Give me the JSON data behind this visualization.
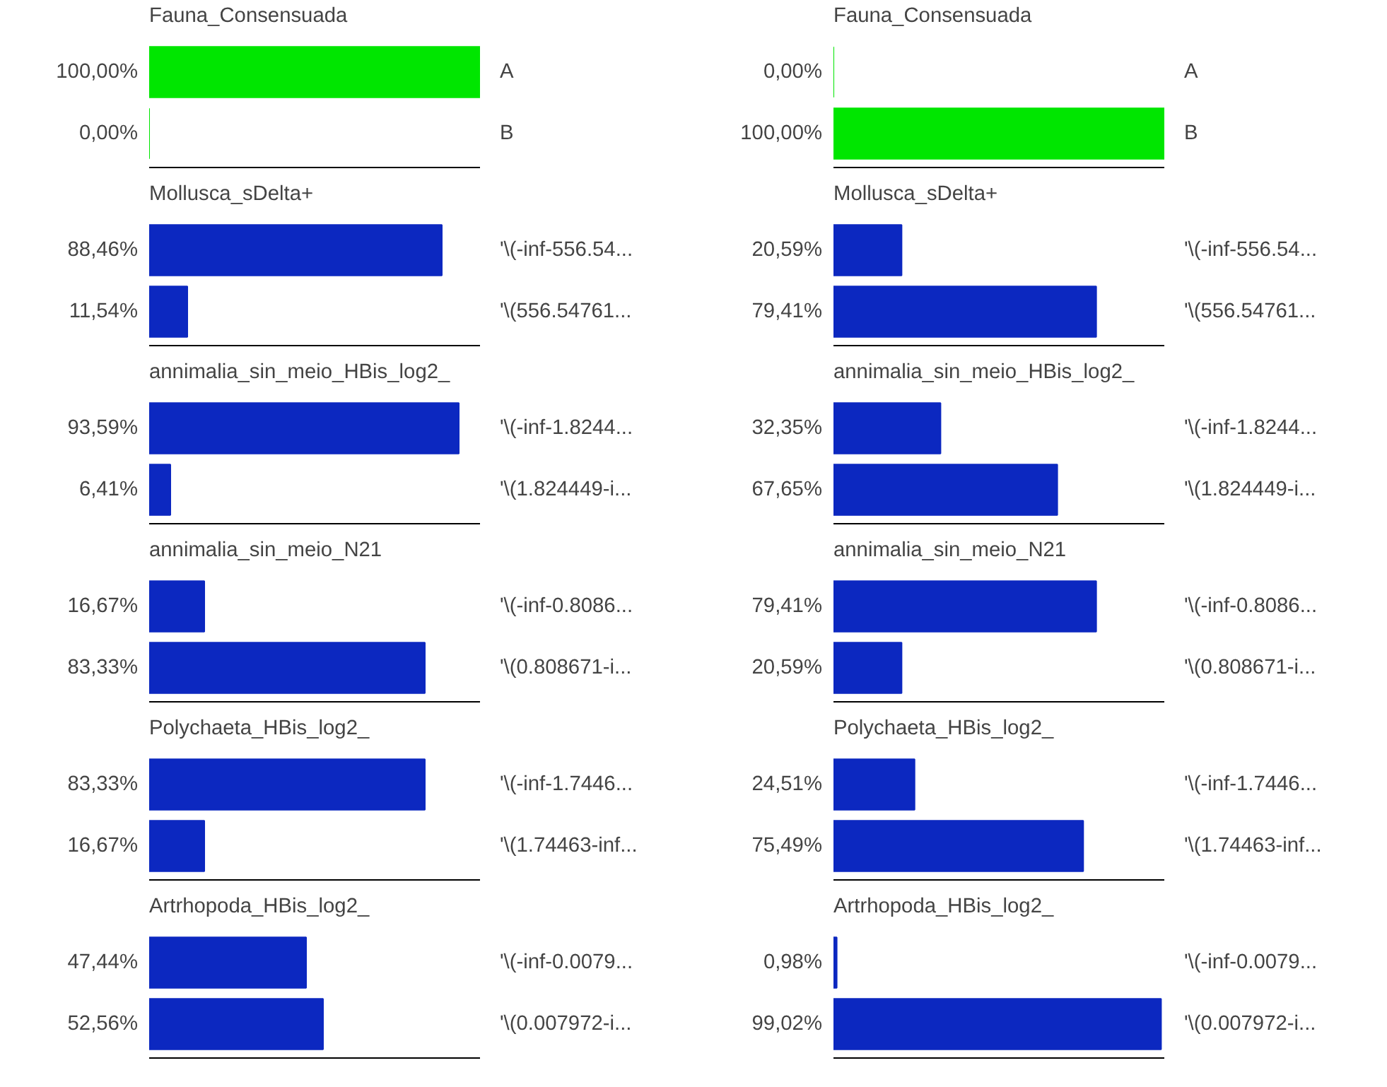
{
  "chart_data": [
    {
      "type": "bar",
      "orientation": "horizontal",
      "title": "Fauna_Consensuada",
      "categories": [
        "A",
        "B"
      ],
      "values": [
        100,
        0
      ],
      "value_labels": [
        "100,00%",
        "0,00%"
      ],
      "color": "#00e600",
      "xlim": [
        0,
        100
      ]
    },
    {
      "type": "bar",
      "orientation": "horizontal",
      "title": "Fauna_Consensuada",
      "categories": [
        "A",
        "B"
      ],
      "values": [
        0,
        100
      ],
      "value_labels": [
        "0,00%",
        "100,00%"
      ],
      "color": "#00e600",
      "xlim": [
        0,
        100
      ]
    },
    {
      "type": "bar",
      "orientation": "horizontal",
      "title": "Mollusca_sDelta+",
      "categories": [
        "'\\(-inf-556.54...",
        "'\\(556.54761..."
      ],
      "values": [
        88.46,
        11.54
      ],
      "value_labels": [
        "88,46%",
        "11,54%"
      ],
      "color": "#0c28c0",
      "xlim": [
        0,
        100
      ]
    },
    {
      "type": "bar",
      "orientation": "horizontal",
      "title": "Mollusca_sDelta+",
      "categories": [
        "'\\(-inf-556.54...",
        "'\\(556.54761..."
      ],
      "values": [
        20.59,
        79.41
      ],
      "value_labels": [
        "20,59%",
        "79,41%"
      ],
      "color": "#0c28c0",
      "xlim": [
        0,
        100
      ]
    },
    {
      "type": "bar",
      "orientation": "horizontal",
      "title": "annimalia_sin_meio_HBis_log2_",
      "categories": [
        "'\\(-inf-1.8244...",
        "'\\(1.824449-i..."
      ],
      "values": [
        93.59,
        6.41
      ],
      "value_labels": [
        "93,59%",
        "6,41%"
      ],
      "color": "#0c28c0",
      "xlim": [
        0,
        100
      ]
    },
    {
      "type": "bar",
      "orientation": "horizontal",
      "title": "annimalia_sin_meio_HBis_log2_",
      "categories": [
        "'\\(-inf-1.8244...",
        "'\\(1.824449-i..."
      ],
      "values": [
        32.35,
        67.65
      ],
      "value_labels": [
        "32,35%",
        "67,65%"
      ],
      "color": "#0c28c0",
      "xlim": [
        0,
        100
      ]
    },
    {
      "type": "bar",
      "orientation": "horizontal",
      "title": "annimalia_sin_meio_N21",
      "categories": [
        "'\\(-inf-0.8086...",
        "'\\(0.808671-i..."
      ],
      "values": [
        16.67,
        83.33
      ],
      "value_labels": [
        "16,67%",
        "83,33%"
      ],
      "color": "#0c28c0",
      "xlim": [
        0,
        100
      ]
    },
    {
      "type": "bar",
      "orientation": "horizontal",
      "title": "annimalia_sin_meio_N21",
      "categories": [
        "'\\(-inf-0.8086...",
        "'\\(0.808671-i..."
      ],
      "values": [
        79.41,
        20.59
      ],
      "value_labels": [
        "79,41%",
        "20,59%"
      ],
      "color": "#0c28c0",
      "xlim": [
        0,
        100
      ]
    },
    {
      "type": "bar",
      "orientation": "horizontal",
      "title": "Polychaeta_HBis_log2_",
      "categories": [
        "'\\(-inf-1.7446...",
        "'\\(1.74463-inf..."
      ],
      "values": [
        83.33,
        16.67
      ],
      "value_labels": [
        "83,33%",
        "16,67%"
      ],
      "color": "#0c28c0",
      "xlim": [
        0,
        100
      ]
    },
    {
      "type": "bar",
      "orientation": "horizontal",
      "title": "Polychaeta_HBis_log2_",
      "categories": [
        "'\\(-inf-1.7446...",
        "'\\(1.74463-inf..."
      ],
      "values": [
        24.51,
        75.49
      ],
      "value_labels": [
        "24,51%",
        "75,49%"
      ],
      "color": "#0c28c0",
      "xlim": [
        0,
        100
      ]
    },
    {
      "type": "bar",
      "orientation": "horizontal",
      "title": "Artrhopoda_HBis_log2_",
      "categories": [
        "'\\(-inf-0.0079...",
        "'\\(0.007972-i..."
      ],
      "values": [
        47.44,
        52.56
      ],
      "value_labels": [
        "47,44%",
        "52,56%"
      ],
      "color": "#0c28c0",
      "xlim": [
        0,
        100
      ]
    },
    {
      "type": "bar",
      "orientation": "horizontal",
      "title": "Artrhopoda_HBis_log2_",
      "categories": [
        "'\\(-inf-0.0079...",
        "'\\(0.007972-i..."
      ],
      "values": [
        0.98,
        99.02
      ],
      "value_labels": [
        "0,98%",
        "99,02%"
      ],
      "color": "#0c28c0",
      "xlim": [
        0,
        100
      ]
    }
  ]
}
